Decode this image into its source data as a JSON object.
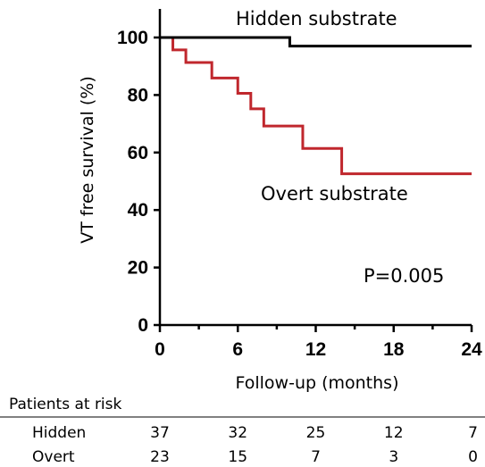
{
  "chart_data": {
    "type": "line",
    "title": "",
    "xlabel": "Follow-up (months)",
    "ylabel": "VT free survival (%)",
    "xlim": [
      0,
      24
    ],
    "ylim": [
      0,
      100
    ],
    "x_ticks": [
      0,
      6,
      12,
      18,
      24
    ],
    "y_ticks": [
      0,
      20,
      40,
      60,
      80,
      100
    ],
    "grid": false,
    "series": [
      {
        "name": "Hidden substrate",
        "color": "#000000",
        "step": true,
        "x": [
          0,
          10,
          24
        ],
        "y": [
          100,
          97,
          97
        ]
      },
      {
        "name": "Overt substrate",
        "color": "#c0272d",
        "step": true,
        "x": [
          0,
          1,
          2,
          4,
          6,
          7,
          8,
          11,
          14,
          24
        ],
        "y": [
          100,
          95.7,
          91.3,
          85.9,
          80.6,
          75.2,
          69.2,
          61.4,
          52.6,
          52.6
        ]
      }
    ],
    "annotations": {
      "p_value": "P=0.005"
    },
    "risk_table": {
      "title": "Patients at risk",
      "rows": [
        {
          "label": "Hidden",
          "values": [
            "37",
            "32",
            "25",
            "12",
            "7"
          ]
        },
        {
          "label": "Overt",
          "values": [
            "23",
            "15",
            "7",
            "3",
            "0"
          ]
        }
      ]
    }
  }
}
